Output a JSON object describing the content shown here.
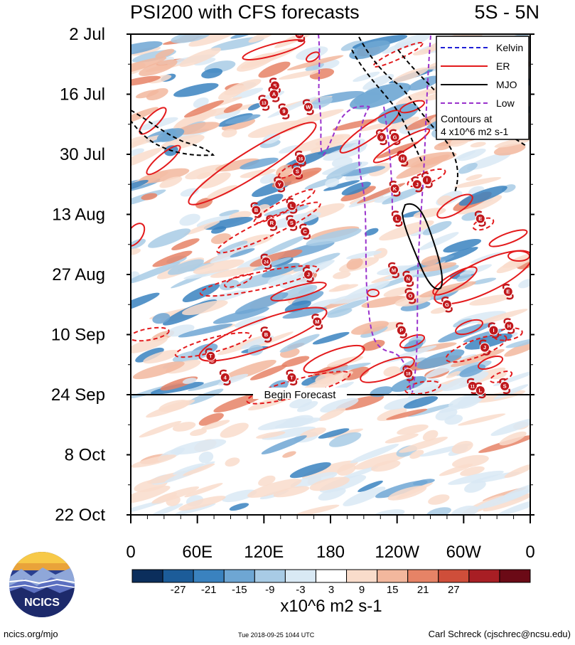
{
  "chart_data": {
    "type": "heatmap",
    "title": "PSI200 with CFS forecasts",
    "title_right": "5S - 5N",
    "y_tick_labels": [
      "2 Jul",
      "16 Jul",
      "30 Jul",
      "13 Aug",
      "27 Aug",
      "10 Sep",
      "24 Sep",
      "8 Oct",
      "22 Oct"
    ],
    "x_tick_labels": [
      "0",
      "60E",
      "120E",
      "180",
      "120W",
      "60W",
      "0"
    ],
    "x_longitudes_deg_east": [
      0,
      60,
      120,
      180,
      240,
      300,
      360
    ],
    "begin_forecast_label": "Begin Forecast",
    "begin_forecast_date": "24 Sep",
    "legend": {
      "entries": [
        {
          "name": "Kelvin",
          "color": "#1f1fd6",
          "style": "dashed"
        },
        {
          "name": "ER",
          "color": "#e31a1c",
          "style": "solid"
        },
        {
          "name": "MJO",
          "color": "#000000",
          "style": "solid"
        },
        {
          "name": "Low",
          "color": "#9932cc",
          "style": "dashed"
        }
      ],
      "note_line1": "Contours at",
      "note_line2": "4 x10^6 m2 s-1"
    },
    "colorbar": {
      "units_label": "x10^6 m2 s-1",
      "tick_labels": [
        "-27",
        "-21",
        "-15",
        "-9",
        "-3",
        "3",
        "9",
        "15",
        "21",
        "27"
      ],
      "colors": [
        "#0b2e5c",
        "#1c5c99",
        "#3a82bf",
        "#6ea6d3",
        "#a8cbe5",
        "#d9e9f4",
        "#ffffff",
        "#f9dccb",
        "#f2b79d",
        "#e68366",
        "#cf4e3a",
        "#a81e24",
        "#6b0a16"
      ]
    },
    "storms": [
      {
        "label": "M",
        "lon": 152,
        "date": "2 Jul"
      },
      {
        "label": "S",
        "lon": 130,
        "date": "14 Jul"
      },
      {
        "label": "A",
        "lon": 129,
        "date": "16 Jul"
      },
      {
        "label": "13",
        "lon": 120,
        "date": "18 Jul"
      },
      {
        "label": "W",
        "lon": 160,
        "date": "19 Jul"
      },
      {
        "label": "9",
        "lon": 138,
        "date": "20 Jul"
      },
      {
        "label": "9",
        "lon": 226,
        "date": "26 Jul"
      },
      {
        "label": "G",
        "lon": 238,
        "date": "26 Jul"
      },
      {
        "label": "16",
        "lon": 153,
        "date": "31 Jul"
      },
      {
        "label": "H",
        "lon": 245,
        "date": "31 Jul"
      },
      {
        "label": "S",
        "lon": 150,
        "date": "3 Aug"
      },
      {
        "label": "Y",
        "lon": 134,
        "date": "6 Aug"
      },
      {
        "label": "J",
        "lon": 258,
        "date": "6 Aug"
      },
      {
        "label": "K",
        "lon": 238,
        "date": "7 Aug"
      },
      {
        "label": "I",
        "lon": 267,
        "date": "5 Aug"
      },
      {
        "label": "L",
        "lon": 145,
        "date": "11 Aug"
      },
      {
        "label": "B",
        "lon": 113,
        "date": "12 Aug"
      },
      {
        "label": "R",
        "lon": 127,
        "date": "15 Aug"
      },
      {
        "label": "S",
        "lon": 145,
        "date": "15 Aug"
      },
      {
        "label": "C",
        "lon": 157,
        "date": "17 Aug"
      },
      {
        "label": "L",
        "lon": 240,
        "date": "14 Aug"
      },
      {
        "label": "E",
        "lon": 315,
        "date": "14 Aug"
      },
      {
        "label": "24",
        "lon": 122,
        "date": "24 Aug"
      },
      {
        "label": "M",
        "lon": 237,
        "date": "26 Aug"
      },
      {
        "label": "J",
        "lon": 160,
        "date": "27 Aug"
      },
      {
        "label": "N",
        "lon": 250,
        "date": "28 Aug"
      },
      {
        "label": "O",
        "lon": 252,
        "date": "1 Sep"
      },
      {
        "label": "G",
        "lon": 285,
        "date": "3 Sep"
      },
      {
        "label": "E",
        "lon": 340,
        "date": "31 Aug"
      },
      {
        "label": "M",
        "lon": 168,
        "date": "7 Sep"
      },
      {
        "label": "P",
        "lon": 244,
        "date": "9 Sep"
      },
      {
        "label": "I",
        "lon": 327,
        "date": "9 Sep"
      },
      {
        "label": "H",
        "lon": 341,
        "date": "8 Sep"
      },
      {
        "label": "B",
        "lon": 122,
        "date": "10 Sep"
      },
      {
        "label": "J",
        "lon": 319,
        "date": "13 Sep"
      },
      {
        "label": "T",
        "lon": 72,
        "date": "15 Sep"
      },
      {
        "label": "18",
        "lon": 250,
        "date": "19 Sep"
      },
      {
        "label": "4",
        "lon": 85,
        "date": "20 Sep"
      },
      {
        "label": "T",
        "lon": 145,
        "date": "20 Sep"
      },
      {
        "label": "11",
        "lon": 308,
        "date": "22 Sep"
      },
      {
        "label": "L",
        "lon": 315,
        "date": "23 Sep"
      },
      {
        "label": "S",
        "lon": 337,
        "date": "22 Sep"
      }
    ]
  },
  "branding": {
    "logo_text": "NCICS",
    "website": "ncics.org/mjo",
    "timestamp": "Tue 2018-09-25 1044 UTC",
    "author": "Carl Schreck (cjschrec@ncsu.edu)"
  }
}
